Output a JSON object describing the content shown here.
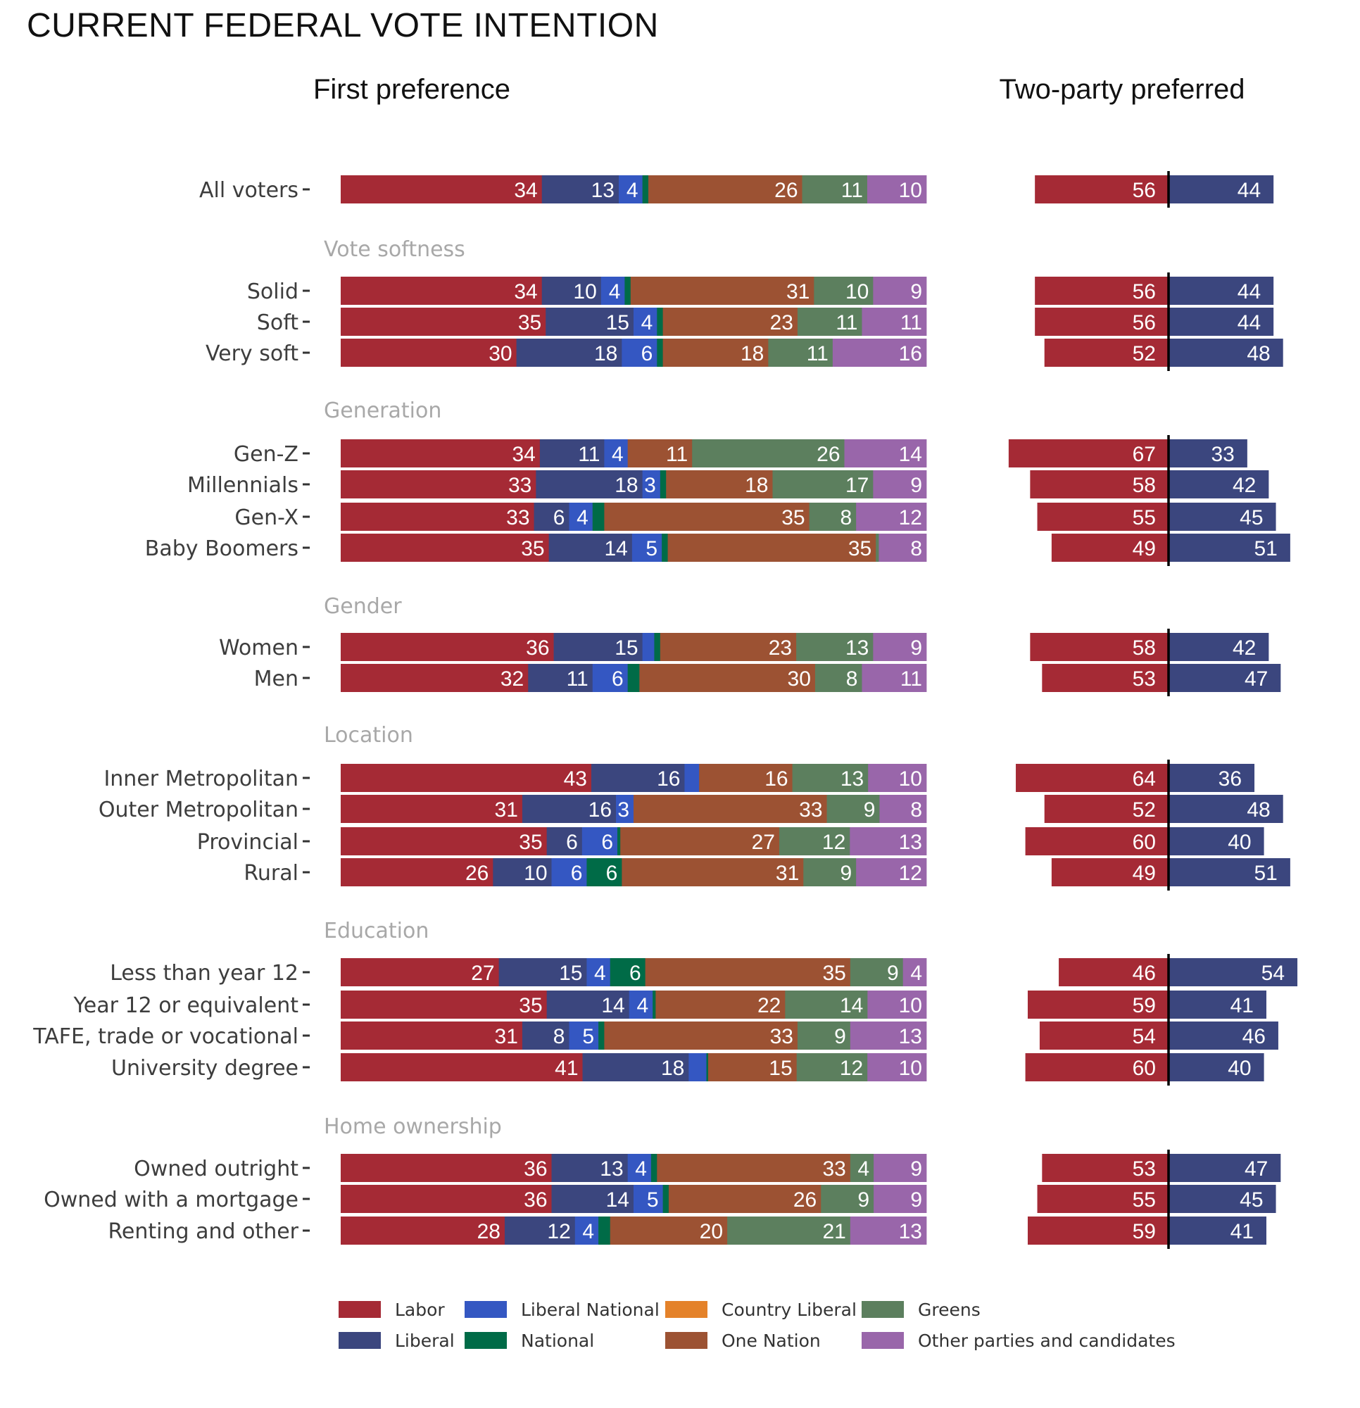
{
  "chart_data": {
    "type": "bar",
    "stacked": true,
    "orientation": "horizontal",
    "title": "CURRENT FEDERAL VOTE INTENTION",
    "panels": [
      {
        "key": "first_preference",
        "title": "First preference"
      },
      {
        "key": "two_party_preferred",
        "title": "Two-party preferred"
      }
    ],
    "parties": [
      {
        "key": "labor",
        "name": "Labor",
        "color": "#A52A35"
      },
      {
        "key": "liberal",
        "name": "Liberal",
        "color": "#3B467E"
      },
      {
        "key": "liberal_national",
        "name": "Liberal National",
        "color": "#3457C2"
      },
      {
        "key": "national",
        "name": "National",
        "color": "#006B47"
      },
      {
        "key": "country_liberal",
        "name": "Country Liberal",
        "color": "#E4822A"
      },
      {
        "key": "one_nation",
        "name": "One Nation",
        "color": "#9C5233"
      },
      {
        "key": "greens",
        "name": "Greens",
        "color": "#5C7F5E"
      },
      {
        "key": "other",
        "name": "Other parties and candidates",
        "color": "#9966AA"
      }
    ],
    "fp_order": [
      "labor",
      "liberal",
      "liberal_national",
      "national",
      "country_liberal",
      "one_nation",
      "greens",
      "other"
    ],
    "tpp_colors": {
      "labor": "#A52A35",
      "coalition": "#3B467E"
    },
    "legend": {
      "placement": "bottom",
      "rows": [
        [
          "labor",
          "liberal_national",
          "country_liberal",
          "greens"
        ],
        [
          "liberal",
          "national",
          "one_nation",
          "other"
        ]
      ]
    },
    "groups": [
      {
        "section": "",
        "rows": [
          {
            "label": "All voters",
            "fp": {
              "labor": 34,
              "liberal": 13,
              "liberal_national": 4,
              "national": 1,
              "country_liberal": 0,
              "one_nation": 26,
              "greens": 11,
              "other": 10
            },
            "fp_labels": {
              "labor": "34",
              "liberal": "13",
              "liberal_national": "4",
              "one_nation": "26",
              "greens": "11",
              "other": "10"
            },
            "tpp": {
              "labor": 56,
              "coalition": 44
            }
          }
        ]
      },
      {
        "section": "Vote softness",
        "rows": [
          {
            "label": "Solid",
            "fp": {
              "labor": 34,
              "liberal": 10,
              "liberal_national": 4,
              "national": 1,
              "country_liberal": 0,
              "one_nation": 31,
              "greens": 10,
              "other": 9
            },
            "fp_labels": {
              "labor": "34",
              "liberal": "10",
              "liberal_national": "4",
              "one_nation": "31",
              "greens": "10",
              "other": "9"
            },
            "tpp": {
              "labor": 56,
              "coalition": 44
            }
          },
          {
            "label": "Soft",
            "fp": {
              "labor": 35,
              "liberal": 15,
              "liberal_national": 4,
              "national": 1,
              "country_liberal": 0,
              "one_nation": 23,
              "greens": 11,
              "other": 11
            },
            "fp_labels": {
              "labor": "35",
              "liberal": "15",
              "liberal_national": "4",
              "one_nation": "23",
              "greens": "11",
              "other": "11"
            },
            "tpp": {
              "labor": 56,
              "coalition": 44
            }
          },
          {
            "label": "Very soft",
            "fp": {
              "labor": 30,
              "liberal": 18,
              "liberal_national": 6,
              "national": 1,
              "country_liberal": 0,
              "one_nation": 18,
              "greens": 11,
              "other": 16
            },
            "fp_labels": {
              "labor": "30",
              "liberal": "18",
              "liberal_national": "6",
              "one_nation": "18",
              "greens": "11",
              "other": "16"
            },
            "tpp": {
              "labor": 52,
              "coalition": 48
            }
          }
        ]
      },
      {
        "section": "Generation",
        "rows": [
          {
            "label": "Gen-Z",
            "fp": {
              "labor": 34,
              "liberal": 11,
              "liberal_national": 4,
              "national": 0,
              "country_liberal": 0,
              "one_nation": 11,
              "greens": 26,
              "other": 14
            },
            "fp_labels": {
              "labor": "34",
              "liberal": "11",
              "liberal_national": "4",
              "one_nation": "11",
              "greens": "26",
              "other": "14"
            },
            "tpp": {
              "labor": 67,
              "coalition": 33
            }
          },
          {
            "label": "Millennials",
            "fp": {
              "labor": 33,
              "liberal": 18,
              "liberal_national": 3,
              "national": 1,
              "country_liberal": 0,
              "one_nation": 18,
              "greens": 17,
              "other": 9
            },
            "fp_labels": {
              "labor": "33",
              "liberal": "18",
              "liberal_national": "3",
              "one_nation": "18",
              "greens": "17",
              "other": "9"
            },
            "tpp": {
              "labor": 58,
              "coalition": 42
            }
          },
          {
            "label": "Gen-X",
            "fp": {
              "labor": 33,
              "liberal": 6,
              "liberal_national": 4,
              "national": 2,
              "country_liberal": 0,
              "one_nation": 35,
              "greens": 8,
              "other": 12
            },
            "fp_labels": {
              "labor": "33",
              "liberal": "6",
              "liberal_national": "4",
              "one_nation": "35",
              "greens": "8",
              "other": "12"
            },
            "tpp": {
              "labor": 55,
              "coalition": 45
            }
          },
          {
            "label": "Baby Boomers",
            "fp": {
              "labor": 35,
              "liberal": 14,
              "liberal_national": 5,
              "national": 1,
              "country_liberal": 0,
              "one_nation": 35,
              "greens": 0.5,
              "other": 8
            },
            "fp_labels": {
              "labor": "35",
              "liberal": "14",
              "liberal_national": "5",
              "one_nation": "35",
              "other": "8"
            },
            "tpp": {
              "labor": 49,
              "coalition": 51
            }
          }
        ]
      },
      {
        "section": "Gender",
        "rows": [
          {
            "label": "Women",
            "fp": {
              "labor": 36,
              "liberal": 15,
              "liberal_national": 2,
              "national": 1,
              "country_liberal": 0,
              "one_nation": 23,
              "greens": 13,
              "other": 9
            },
            "fp_labels": {
              "labor": "36",
              "liberal": "15",
              "one_nation": "23",
              "greens": "13",
              "other": "9"
            },
            "tpp": {
              "labor": 58,
              "coalition": 42
            }
          },
          {
            "label": "Men",
            "fp": {
              "labor": 32,
              "liberal": 11,
              "liberal_national": 6,
              "national": 2,
              "country_liberal": 0,
              "one_nation": 30,
              "greens": 8,
              "other": 11
            },
            "fp_labels": {
              "labor": "32",
              "liberal": "11",
              "liberal_national": "6",
              "one_nation": "30",
              "greens": "8",
              "other": "11"
            },
            "tpp": {
              "labor": 53,
              "coalition": 47
            }
          }
        ]
      },
      {
        "section": "Location",
        "rows": [
          {
            "label": "Inner Metropolitan",
            "fp": {
              "labor": 43,
              "liberal": 16,
              "liberal_national": 2.5,
              "national": 0,
              "country_liberal": 0,
              "one_nation": 16,
              "greens": 13,
              "other": 10
            },
            "fp_labels": {
              "labor": "43",
              "liberal": "16",
              "one_nation": "16",
              "greens": "13",
              "other": "10"
            },
            "tpp": {
              "labor": 64,
              "coalition": 36
            }
          },
          {
            "label": "Outer Metropolitan",
            "fp": {
              "labor": 31,
              "liberal": 16,
              "liberal_national": 3,
              "national": 0,
              "country_liberal": 0,
              "one_nation": 33,
              "greens": 9,
              "other": 8
            },
            "fp_labels": {
              "labor": "31",
              "liberal": "16",
              "liberal_national": "3",
              "one_nation": "33",
              "greens": "9",
              "other": "8"
            },
            "tpp": {
              "labor": 52,
              "coalition": 48
            }
          },
          {
            "label": "Provincial",
            "fp": {
              "labor": 35,
              "liberal": 6,
              "liberal_national": 6,
              "national": 0.5,
              "country_liberal": 0,
              "one_nation": 27,
              "greens": 12,
              "other": 13
            },
            "fp_labels": {
              "labor": "35",
              "liberal": "6",
              "liberal_national": "6",
              "one_nation": "27",
              "greens": "12",
              "other": "13"
            },
            "tpp": {
              "labor": 60,
              "coalition": 40
            }
          },
          {
            "label": "Rural",
            "fp": {
              "labor": 26,
              "liberal": 10,
              "liberal_national": 6,
              "national": 6,
              "country_liberal": 0,
              "one_nation": 31,
              "greens": 9,
              "other": 12
            },
            "fp_labels": {
              "labor": "26",
              "liberal": "10",
              "liberal_national": "6",
              "national": "6",
              "one_nation": "31",
              "greens": "9",
              "other": "12"
            },
            "tpp": {
              "labor": 49,
              "coalition": 51
            }
          }
        ]
      },
      {
        "section": "Education",
        "rows": [
          {
            "label": "Less than year 12",
            "fp": {
              "labor": 27,
              "liberal": 15,
              "liberal_national": 4,
              "national": 6,
              "country_liberal": 0,
              "one_nation": 35,
              "greens": 9,
              "other": 4
            },
            "fp_labels": {
              "labor": "27",
              "liberal": "15",
              "liberal_national": "4",
              "national": "6",
              "one_nation": "35",
              "greens": "9",
              "other": "4"
            },
            "tpp": {
              "labor": 46,
              "coalition": 54
            }
          },
          {
            "label": "Year 12 or equivalent",
            "fp": {
              "labor": 35,
              "liberal": 14,
              "liberal_national": 4,
              "national": 0.5,
              "country_liberal": 0,
              "one_nation": 22,
              "greens": 14,
              "other": 10
            },
            "fp_labels": {
              "labor": "35",
              "liberal": "14",
              "liberal_national": "4",
              "one_nation": "22",
              "greens": "14",
              "other": "10"
            },
            "tpp": {
              "labor": 59,
              "coalition": 41
            }
          },
          {
            "label": "TAFE, trade or vocational",
            "fp": {
              "labor": 31,
              "liberal": 8,
              "liberal_national": 5,
              "national": 1,
              "country_liberal": 0,
              "one_nation": 33,
              "greens": 9,
              "other": 13
            },
            "fp_labels": {
              "labor": "31",
              "liberal": "8",
              "liberal_national": "5",
              "one_nation": "33",
              "greens": "9",
              "other": "13"
            },
            "tpp": {
              "labor": 54,
              "coalition": 46
            }
          },
          {
            "label": "University degree",
            "fp": {
              "labor": 41,
              "liberal": 18,
              "liberal_national": 3,
              "national": 0.3,
              "country_liberal": 0,
              "one_nation": 15,
              "greens": 12,
              "other": 10
            },
            "fp_labels": {
              "labor": "41",
              "liberal": "18",
              "one_nation": "15",
              "greens": "12",
              "other": "10"
            },
            "tpp": {
              "labor": 60,
              "coalition": 40
            }
          }
        ]
      },
      {
        "section": "Home ownership",
        "rows": [
          {
            "label": "Owned outright",
            "fp": {
              "labor": 36,
              "liberal": 13,
              "liberal_national": 4,
              "national": 1,
              "country_liberal": 0,
              "one_nation": 33,
              "greens": 4,
              "other": 9
            },
            "fp_labels": {
              "labor": "36",
              "liberal": "13",
              "liberal_national": "4",
              "one_nation": "33",
              "greens": "4",
              "other": "9"
            },
            "tpp": {
              "labor": 53,
              "coalition": 47
            }
          },
          {
            "label": "Owned with a mortgage",
            "fp": {
              "labor": 36,
              "liberal": 14,
              "liberal_national": 5,
              "national": 1,
              "country_liberal": 0,
              "one_nation": 26,
              "greens": 9,
              "other": 9
            },
            "fp_labels": {
              "labor": "36",
              "liberal": "14",
              "liberal_national": "5",
              "one_nation": "26",
              "greens": "9",
              "other": "9"
            },
            "tpp": {
              "labor": 55,
              "coalition": 45
            }
          },
          {
            "label": "Renting and other",
            "fp": {
              "labor": 28,
              "liberal": 12,
              "liberal_national": 4,
              "national": 2,
              "country_liberal": 0,
              "one_nation": 20,
              "greens": 21,
              "other": 13
            },
            "fp_labels": {
              "labor": "28",
              "liberal": "12",
              "liberal_national": "4",
              "one_nation": "20",
              "greens": "21",
              "other": "13"
            },
            "tpp": {
              "labor": 59,
              "coalition": 41
            }
          }
        ]
      }
    ]
  }
}
